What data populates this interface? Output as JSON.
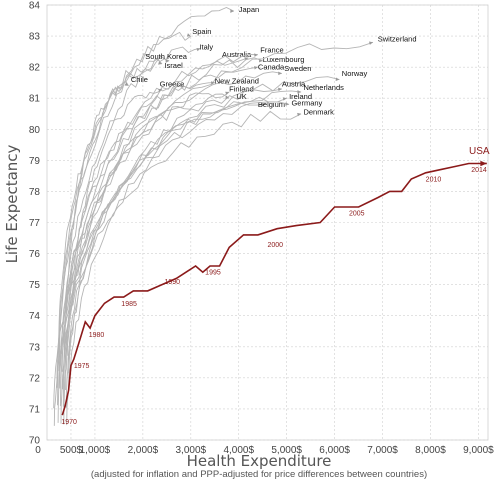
{
  "chart_data": {
    "type": "line",
    "title": "",
    "xlabel": "Health Expenditure",
    "xlabel_note": "(adjusted for inflation and PPP-adjusted for price differences between countries)",
    "ylabel": "Life Expectancy",
    "xlim": [
      0,
      9200
    ],
    "ylim": [
      70,
      84
    ],
    "x_ticks": [
      {
        "value": 500,
        "label": "500$"
      },
      {
        "value": 1000,
        "label": "1,000$"
      },
      {
        "value": 2000,
        "label": "2,000$"
      },
      {
        "value": 3000,
        "label": "3,000$"
      },
      {
        "value": 4000,
        "label": "4,000$"
      },
      {
        "value": 5000,
        "label": "5,000$"
      },
      {
        "value": 6000,
        "label": "6,000$"
      },
      {
        "value": 7000,
        "label": "7,000$"
      },
      {
        "value": 8000,
        "label": "8,000$"
      },
      {
        "value": 9000,
        "label": "9,000$"
      }
    ],
    "x_zero_label": "0",
    "y_ticks": [
      70,
      71,
      72,
      73,
      74,
      75,
      76,
      77,
      78,
      79,
      80,
      81,
      82,
      83,
      84
    ],
    "grid": true,
    "colors": {
      "countries": "#b5b5b5",
      "usa": "#8b1a1a",
      "grid": "#d0d0d0"
    },
    "usa": {
      "name": "USA",
      "points": [
        [
          320,
          70.8
        ],
        [
          380,
          71.1
        ],
        [
          450,
          71.6
        ],
        [
          500,
          72.4
        ],
        [
          560,
          72.6
        ],
        [
          640,
          73.0
        ],
        [
          720,
          73.4
        ],
        [
          800,
          73.8
        ],
        [
          900,
          73.6
        ],
        [
          1000,
          74.0
        ],
        [
          1200,
          74.4
        ],
        [
          1400,
          74.6
        ],
        [
          1600,
          74.6
        ],
        [
          1800,
          74.8
        ],
        [
          2100,
          74.8
        ],
        [
          2400,
          75.0
        ],
        [
          2700,
          75.2
        ],
        [
          2900,
          75.4
        ],
        [
          3100,
          75.6
        ],
        [
          3250,
          75.4
        ],
        [
          3400,
          75.6
        ],
        [
          3600,
          75.6
        ],
        [
          3800,
          76.2
        ],
        [
          4100,
          76.6
        ],
        [
          4400,
          76.6
        ],
        [
          4800,
          76.8
        ],
        [
          5200,
          76.9
        ],
        [
          5700,
          77.0
        ],
        [
          6000,
          77.5
        ],
        [
          6500,
          77.5
        ],
        [
          6900,
          77.8
        ],
        [
          7150,
          78.0
        ],
        [
          7400,
          78.0
        ],
        [
          7600,
          78.4
        ],
        [
          7900,
          78.6
        ],
        [
          8200,
          78.7
        ],
        [
          8500,
          78.8
        ],
        [
          8800,
          78.9
        ],
        [
          9050,
          78.9
        ]
      ],
      "year_labels": [
        {
          "year": "1970",
          "x": 300,
          "y": 70.6
        },
        {
          "year": "1975",
          "x": 560,
          "y": 72.4
        },
        {
          "year": "1980",
          "x": 870,
          "y": 73.4
        },
        {
          "year": "1985",
          "x": 1550,
          "y": 74.4
        },
        {
          "year": "1990",
          "x": 2450,
          "y": 75.1
        },
        {
          "year": "1995",
          "x": 3300,
          "y": 75.4
        },
        {
          "year": "2000",
          "x": 4600,
          "y": 76.3
        },
        {
          "year": "2005",
          "x": 6300,
          "y": 77.3
        },
        {
          "year": "2010",
          "x": 7900,
          "y": 78.4
        },
        {
          "year": "2014",
          "x": 8850,
          "y": 78.7
        }
      ]
    },
    "countries": [
      {
        "name": "Japan",
        "end": [
          3900,
          83.8
        ],
        "label_pos": [
          4000,
          83.85
        ]
      },
      {
        "name": "Spain",
        "end": [
          3000,
          83.0
        ],
        "label_pos": [
          3030,
          83.15
        ]
      },
      {
        "name": "Italy",
        "end": [
          3200,
          82.6
        ],
        "label_pos": [
          3180,
          82.65
        ]
      },
      {
        "name": "South Korea",
        "end": [
          2550,
          82.2
        ],
        "label_pos": [
          2050,
          82.35
        ]
      },
      {
        "name": "Israel",
        "end": [
          2400,
          82.1
        ],
        "label_pos": [
          2450,
          82.05
        ]
      },
      {
        "name": "Australia",
        "end": [
          4200,
          82.3
        ],
        "label_pos": [
          3650,
          82.4
        ]
      },
      {
        "name": "France",
        "end": [
          4400,
          82.4
        ],
        "label_pos": [
          4450,
          82.55
        ]
      },
      {
        "name": "Luxembourg",
        "end": [
          4500,
          82.2
        ],
        "label_pos": [
          4500,
          82.25
        ]
      },
      {
        "name": "Switzerland",
        "end": [
          6800,
          82.8
        ],
        "label_pos": [
          6900,
          82.9
        ]
      },
      {
        "name": "Canada",
        "end": [
          4400,
          82.0
        ],
        "label_pos": [
          4400,
          82.0
        ]
      },
      {
        "name": "Sweden",
        "end": [
          4900,
          81.8
        ],
        "label_pos": [
          4950,
          81.95
        ]
      },
      {
        "name": "Chile",
        "end": [
          1700,
          81.4
        ],
        "label_pos": [
          1750,
          81.6
        ]
      },
      {
        "name": "Greece",
        "end": [
          2400,
          81.3
        ],
        "label_pos": [
          2350,
          81.45
        ]
      },
      {
        "name": "New Zealand",
        "end": [
          3500,
          81.5
        ],
        "label_pos": [
          3500,
          81.55
        ]
      },
      {
        "name": "Norway",
        "end": [
          6100,
          81.6
        ],
        "label_pos": [
          6150,
          81.8
        ]
      },
      {
        "name": "Finland",
        "end": [
          3800,
          81.2
        ],
        "label_pos": [
          3800,
          81.3
        ]
      },
      {
        "name": "Austria",
        "end": [
          4900,
          81.3
        ],
        "label_pos": [
          4900,
          81.45
        ]
      },
      {
        "name": "Netherlands",
        "end": [
          5300,
          81.2
        ],
        "label_pos": [
          5350,
          81.35
        ]
      },
      {
        "name": "UK",
        "end": [
          3800,
          81.0
        ],
        "label_pos": [
          3950,
          81.05
        ]
      },
      {
        "name": "Ireland",
        "end": [
          5000,
          81.0
        ],
        "label_pos": [
          5050,
          81.05
        ]
      },
      {
        "name": "Belgium",
        "end": [
          4550,
          80.8
        ],
        "label_pos": [
          4400,
          80.8
        ]
      },
      {
        "name": "Germany",
        "end": [
          5050,
          80.8
        ],
        "label_pos": [
          5100,
          80.85
        ]
      },
      {
        "name": "Denmark",
        "end": [
          5300,
          80.5
        ],
        "label_pos": [
          5350,
          80.55
        ]
      }
    ]
  }
}
